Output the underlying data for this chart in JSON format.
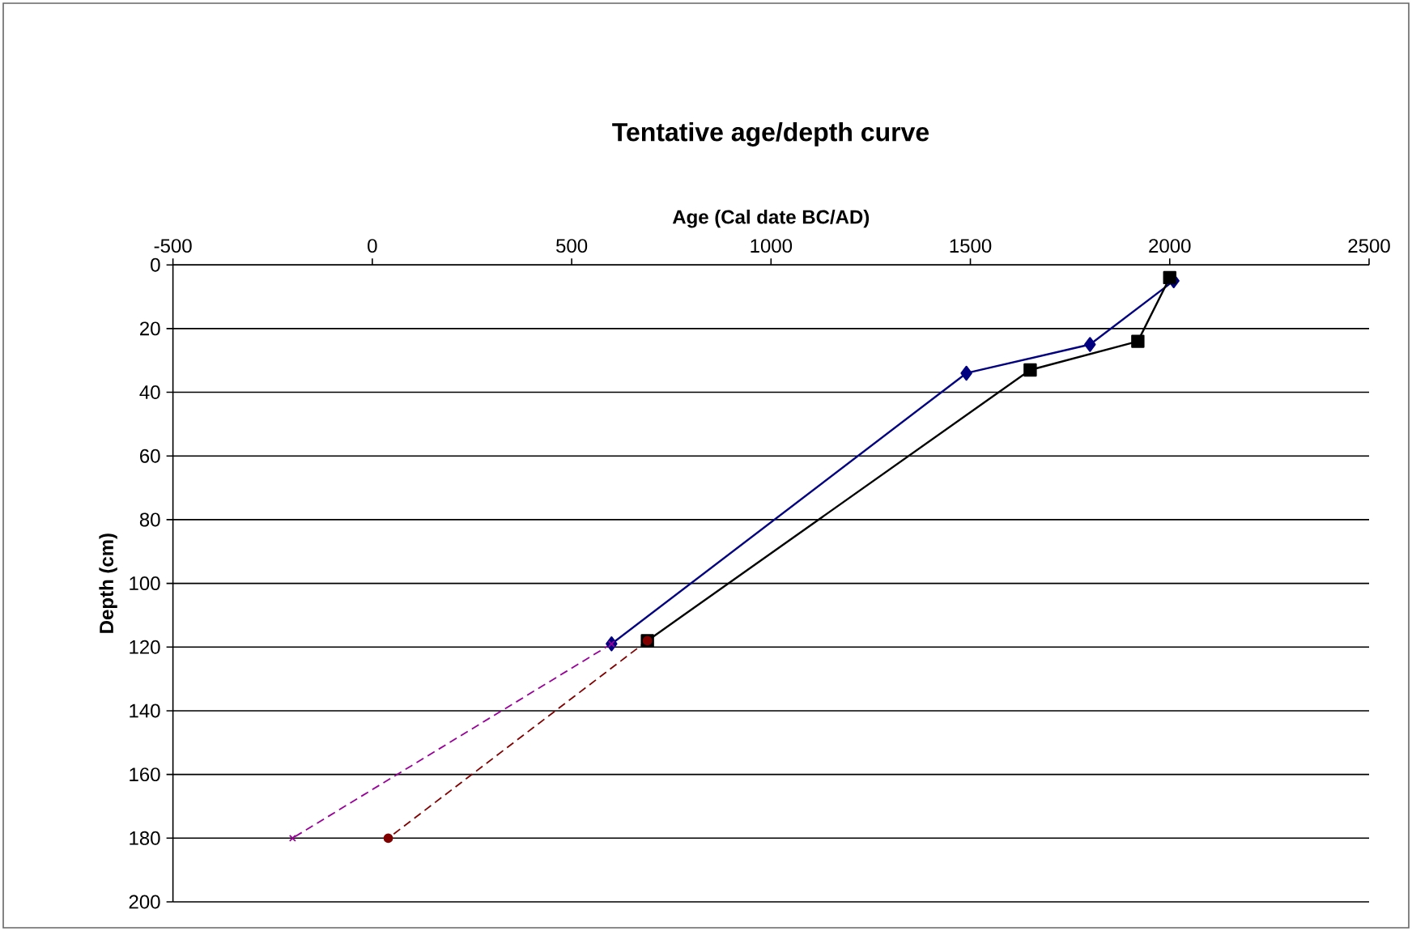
{
  "chart_data": {
    "type": "line",
    "title": "Tentative age/depth curve",
    "xlabel": "Age (Cal date BC/AD)",
    "ylabel": "Depth (cm)",
    "xlim": [
      -500,
      2500
    ],
    "xticks": [
      -500,
      0,
      500,
      1000,
      1500,
      2000,
      2500
    ],
    "ylim": [
      200,
      0
    ],
    "yticks": [
      0,
      20,
      40,
      60,
      80,
      100,
      120,
      140,
      160,
      180,
      200
    ],
    "grid": "y",
    "series": [
      {
        "color": "#000080",
        "marker": "diamond",
        "line_style": "solid",
        "x": [
          2010,
          1800,
          1490,
          600
        ],
        "values": [
          5,
          25,
          34,
          119
        ]
      },
      {
        "color": "#000000",
        "marker": "square",
        "line_style": "solid",
        "x": [
          2000,
          1920,
          1650,
          690
        ],
        "values": [
          4,
          24,
          33,
          118
        ]
      },
      {
        "color": "#990099",
        "marker": "cross",
        "line_style": "dashed",
        "x": [
          600,
          -200
        ],
        "values": [
          119,
          180
        ]
      },
      {
        "color": "#800000",
        "marker": "circle",
        "line_style": "dashed",
        "x": [
          690,
          40
        ],
        "values": [
          118,
          180
        ]
      }
    ]
  }
}
